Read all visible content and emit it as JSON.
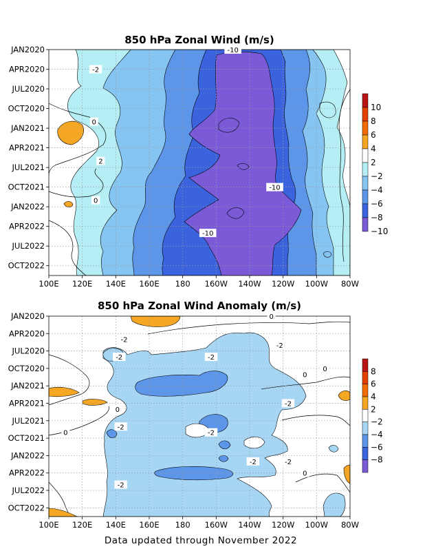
{
  "chart_data": [
    {
      "type": "heatmap",
      "title": "850 hPa Zonal Wind (m/s)",
      "x_tick_labels": [
        "100E",
        "120E",
        "140E",
        "160E",
        "180",
        "160W",
        "140W",
        "120W",
        "100W",
        "80W"
      ],
      "y_tick_labels": [
        "JAN2020",
        "APR2020",
        "JUL2020",
        "OCT2020",
        "JAN2021",
        "APR2021",
        "JUL2021",
        "OCT2021",
        "JAN2022",
        "APR2022",
        "JUL2022",
        "OCT2022"
      ],
      "colorbar_labels": [
        "10",
        "8",
        "6",
        "4",
        "2",
        "-2",
        "-4",
        "-6",
        "-8",
        "-10"
      ],
      "colorbar_colors": [
        "#b81414",
        "#e34100",
        "#f26b00",
        "#f5a623",
        "#ffffff",
        "#b5eff5",
        "#86c4f2",
        "#5d96e8",
        "#3b63de",
        "#7a5ad6"
      ],
      "contour_labels": [
        {
          "text": "-10",
          "lon": -150,
          "month": 0.5
        },
        {
          "text": "-2",
          "lon": 128,
          "month": 3.5
        },
        {
          "text": "0",
          "lon": 127,
          "month": 11.5
        },
        {
          "text": "2",
          "lon": 131,
          "month": 17.5
        },
        {
          "text": "-10",
          "lon": -125,
          "month": 21.5
        },
        {
          "text": "0",
          "lon": 128,
          "month": 23.5
        },
        {
          "text": "-10",
          "lon": -165,
          "month": 28.5
        }
      ]
    },
    {
      "type": "heatmap",
      "title": "850 hPa Zonal Wind Anomaly (m/s)",
      "x_tick_labels": [
        "100E",
        "120E",
        "140E",
        "160E",
        "180",
        "160W",
        "140W",
        "120W",
        "100W",
        "80W"
      ],
      "y_tick_labels": [
        "JAN2020",
        "APR2020",
        "JUL2020",
        "OCT2020",
        "JAN2021",
        "APR2021",
        "JUL2021",
        "OCT2021",
        "JAN2022",
        "APR2022",
        "JUL2022",
        "OCT2022"
      ],
      "colorbar_labels": [
        "8",
        "6",
        "4",
        "2",
        "-2",
        "-4",
        "-6",
        "-8"
      ],
      "colorbar_colors": [
        "#b81414",
        "#e34100",
        "#f26b00",
        "#f5a623",
        "#ffffff",
        "#a7d6f5",
        "#5d96e8",
        "#3b63de",
        "#7a5ad6"
      ],
      "contour_labels": [
        {
          "text": "0",
          "lon": -127,
          "month": 0.5
        },
        {
          "text": "-2",
          "lon": 145,
          "month": 4.5
        },
        {
          "text": "-2",
          "lon": -122,
          "month": 5.5
        },
        {
          "text": "-2",
          "lon": 142,
          "month": 7.5
        },
        {
          "text": "-2",
          "lon": -163,
          "month": 7.5
        },
        {
          "text": "0",
          "lon": -107,
          "month": 10.5
        },
        {
          "text": "0",
          "lon": -95,
          "month": 9.5
        },
        {
          "text": "-2",
          "lon": -117,
          "month": 15.5
        },
        {
          "text": "0",
          "lon": 141,
          "month": 16.5
        },
        {
          "text": "-2",
          "lon": 143,
          "month": 19.5
        },
        {
          "text": "0",
          "lon": 110,
          "month": 20.5
        },
        {
          "text": "-2",
          "lon": -163,
          "month": 20.5
        },
        {
          "text": "-2",
          "lon": -138,
          "month": 25.5
        },
        {
          "text": "-2",
          "lon": -117,
          "month": 25.5
        },
        {
          "text": "0",
          "lon": -107,
          "month": 27.5
        },
        {
          "text": "-2",
          "lon": 143,
          "month": 29.5
        }
      ]
    }
  ],
  "footer": "Data updated through November 2022"
}
